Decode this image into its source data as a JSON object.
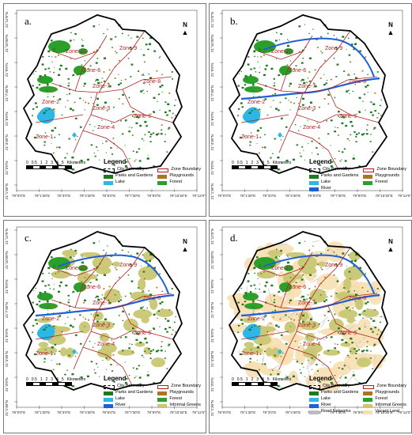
{
  "panels": [
    {
      "label": "a.",
      "river": false,
      "informal": false,
      "vacant": false
    },
    {
      "label": "b.",
      "river": true,
      "informal": false,
      "vacant": false
    },
    {
      "label": "c.",
      "river": true,
      "informal": true,
      "vacant": false
    },
    {
      "label": "d.",
      "river": true,
      "informal": true,
      "vacant": true
    }
  ],
  "zones": [
    "Zone-1",
    "Zone-2",
    "Zone-3",
    "Zone-4",
    "Zone-5",
    "Zone-6",
    "Zone-7",
    "Zone-8",
    "Zone-9",
    "Zone-10"
  ],
  "north_label": "N",
  "scale": {
    "ticks": [
      "0",
      "0.5",
      "1",
      "2",
      "3",
      "4",
      "5"
    ],
    "unit": "Kilometers"
  },
  "x_ticks": [
    "79°0'0\"E",
    "79°1'30\"E",
    "79°3'0\"E",
    "79°4'30\"E",
    "79°6'0\"E",
    "79°7'30\"E",
    "79°9'0\"E",
    "79°10'30\"E",
    "79°12'0\"E"
  ],
  "y_ticks": [
    "21°12'0\"N",
    "21°10'30\"N",
    "21°9'0\"N",
    "21°7'30\"N",
    "21°6'0\"N",
    "21°4'30\"N",
    "21°3'0\"N",
    "21°1'30\"N"
  ],
  "legend": {
    "title": "Legend",
    "city_boundary": "City Boundary",
    "zone_boundary": "Zone Boundary",
    "parks": "Parks and Gardens",
    "playgrounds": "Playgrounds",
    "lake": "Lake",
    "forest": "Forest",
    "river": "River",
    "informal": "Informal Greens",
    "roads": "Road Networks",
    "vacant": "Vacant Land"
  },
  "colors": {
    "city_boundary": "#000000",
    "zone_boundary": "#b02020",
    "parks": "#1f7a1f",
    "playgrounds": "#a9781e",
    "lake": "#2db7e6",
    "forest": "#2aa02a",
    "river": "#1e5fd6",
    "informal": "#c8c774",
    "roads": "#bdbdbd",
    "vacant": "#f7dfb1"
  }
}
